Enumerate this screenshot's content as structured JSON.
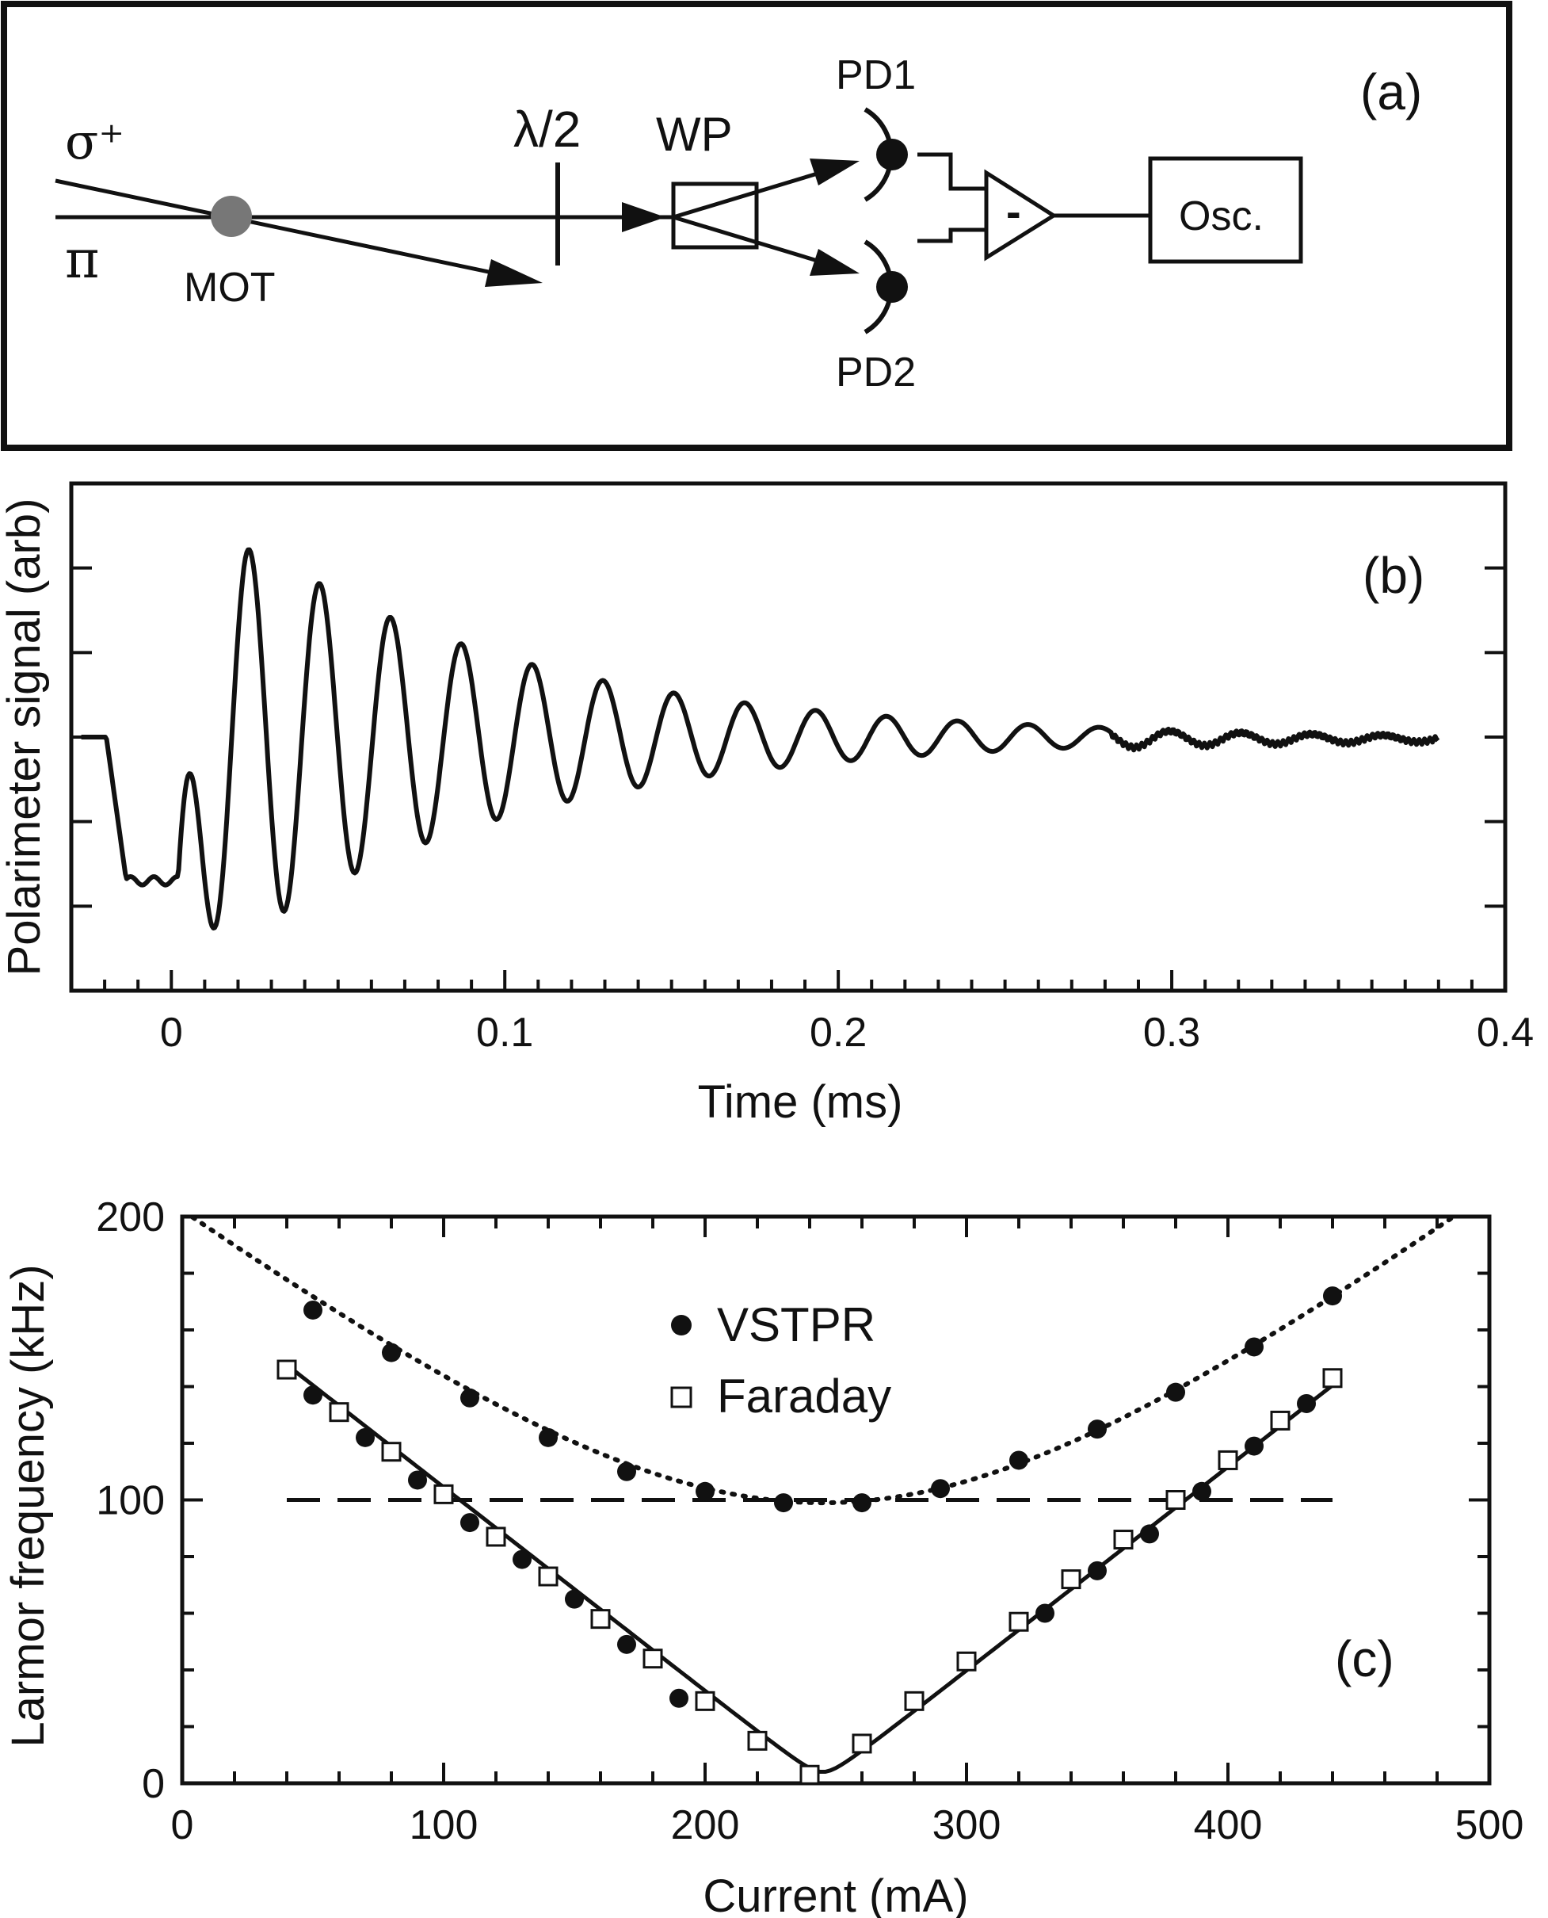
{
  "figure": {
    "panel_a": {
      "panel_label": "(a)",
      "labels": {
        "sigma": "σ⁺",
        "pi": "π",
        "mot": "MOT",
        "halfwave": "λ/2",
        "wp": "WP",
        "pd1": "PD1",
        "pd2": "PD2",
        "minus": "-",
        "osc": "Osc."
      },
      "colors": {
        "mot_dot": "#777777",
        "line": "#111111"
      }
    }
  },
  "chart_data": [
    {
      "id": "panel_b",
      "type": "line",
      "panel_label": "(b)",
      "title": "",
      "xlabel": "Time (ms)",
      "ylabel": "Polarimeter signal (arb)",
      "xlim": [
        -0.03,
        0.4
      ],
      "ylim": [
        -3,
        3
      ],
      "x_ticks": [
        0,
        0.1,
        0.2,
        0.3,
        0.4
      ],
      "x_tick_labels": [
        "0",
        "0.1",
        "0.2",
        "0.3",
        "0.4"
      ],
      "x_minor_step": 0.01,
      "y_ticks": [
        -3,
        -2,
        -1,
        0,
        1,
        2,
        3
      ],
      "y_tick_labels": [],
      "grid": false,
      "series": [
        {
          "name": "Polarimeter signal",
          "color": "#111111",
          "baseline_before": 0.0,
          "step_time": -0.0195,
          "pre_trigger_level": -1.7,
          "trigger_time": 0.002,
          "oscillation_period_ms": 0.02125,
          "oscillation_offset": 0.0,
          "peak_amplitude": 3.0,
          "decay_time_ms": 0.085,
          "end_time": 0.38,
          "end_level": -0.05
        }
      ]
    },
    {
      "id": "panel_c",
      "type": "scatter",
      "panel_label": "(c)",
      "title": "",
      "xlabel": "Current (mA)",
      "ylabel": "Larmor frequency (kHz)",
      "xlim": [
        0,
        500
      ],
      "ylim": [
        0,
        200
      ],
      "x_ticks": [
        0,
        100,
        200,
        300,
        400,
        500
      ],
      "x_tick_labels": [
        "0",
        "100",
        "200",
        "300",
        "400",
        "500"
      ],
      "x_minor_step": 20,
      "y_ticks": [
        0,
        100,
        200
      ],
      "y_tick_labels": [
        "0",
        "100",
        "200"
      ],
      "y_minor_step": 20,
      "grid": false,
      "legend": {
        "position": "top-center",
        "entries": [
          "VSTPR",
          "Faraday"
        ]
      },
      "series": [
        {
          "name": "VSTPR",
          "marker": "filled-circle",
          "color": "#111111",
          "x": [
            50,
            80,
            110,
            140,
            170,
            200,
            230,
            260,
            290,
            320,
            350,
            380,
            410,
            440
          ],
          "y": [
            167,
            152,
            136,
            122,
            110,
            103,
            99,
            99,
            104,
            114,
            125,
            138,
            154,
            172
          ]
        },
        {
          "name": "VSTPR",
          "marker": "filled-circle",
          "color": "#111111",
          "legend": false,
          "x": [
            50,
            70,
            90,
            110,
            130,
            150,
            170,
            190,
            330,
            350,
            370,
            390,
            410,
            430
          ],
          "y": [
            137,
            122,
            107,
            92,
            79,
            65,
            49,
            30,
            60,
            75,
            88,
            103,
            119,
            134
          ]
        },
        {
          "name": "Faraday",
          "marker": "open-square",
          "color": "#111111",
          "x": [
            40,
            60,
            80,
            100,
            120,
            140,
            160,
            180,
            200,
            220,
            240,
            260,
            280,
            300,
            320,
            340,
            360,
            380,
            400,
            420,
            440
          ],
          "y": [
            146,
            131,
            117,
            102,
            87,
            73,
            58,
            44,
            29,
            15,
            3,
            14,
            29,
            43,
            57,
            72,
            86,
            100,
            114,
            128,
            143
          ]
        }
      ],
      "fits": [
        {
          "name": "VSTPR fit",
          "style": "dotted",
          "shape": "hyperbola",
          "x_center": 245,
          "y_min": 99,
          "slope": 0.72,
          "x_range": [
            0,
            500
          ]
        },
        {
          "name": "Faraday fit",
          "style": "solid",
          "shape": "v-rounded",
          "x_center": 245,
          "slope": 0.72,
          "x_range": [
            40,
            440
          ]
        },
        {
          "name": "Reference 100 kHz",
          "style": "dashed",
          "y": 100,
          "x_range": [
            40,
            440
          ]
        }
      ]
    }
  ]
}
